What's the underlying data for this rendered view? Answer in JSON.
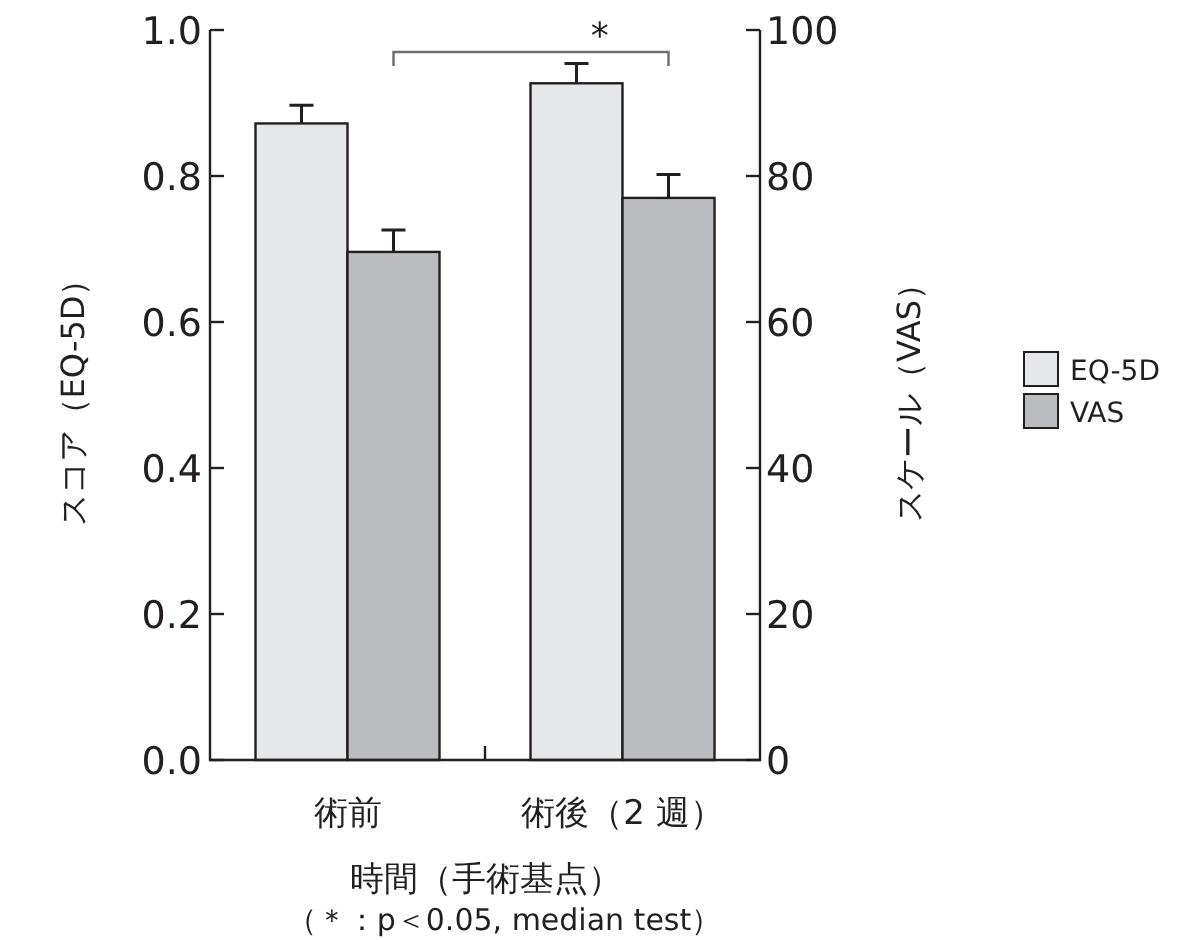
{
  "chart_data": {
    "type": "bar",
    "categories": [
      "術前",
      "術後（2 週）"
    ],
    "xlabel": "時間（手術基点）",
    "ylabel": "スコア（EQ-5D）",
    "y2label": "スケール（VAS）",
    "series": [
      {
        "name": "EQ-5D",
        "color": "#e6e7e9",
        "values": [
          0.872,
          0.927
        ],
        "errors": [
          0.025,
          0.027
        ]
      },
      {
        "name": "VAS",
        "color": "#bbbcc0",
        "values": [
          69.6,
          77.0
        ],
        "errors": [
          3.0,
          3.2
        ],
        "axis": "y2"
      }
    ],
    "ylim": [
      0,
      1
    ],
    "yticks": [
      {
        "value": 0,
        "label": "0.0"
      },
      {
        "value": 0.2,
        "label": "0.2"
      },
      {
        "value": 0.4,
        "label": "0.4"
      },
      {
        "value": 0.6,
        "label": "0.6"
      },
      {
        "value": 0.8,
        "label": "0.8"
      },
      {
        "value": 1,
        "label": "1.0"
      }
    ],
    "y2lim": [
      0,
      100
    ],
    "y2ticks": [
      0,
      20,
      40,
      60,
      80,
      100
    ],
    "legend": "right",
    "annotations": [
      "*",
      "（＊：p＜0.05, median test）"
    ]
  }
}
